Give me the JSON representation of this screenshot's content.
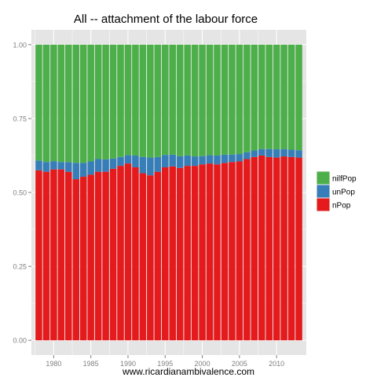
{
  "colors": {
    "panel_bg": "#e5e5e5",
    "grid": "#ffffff",
    "tick_text": "#7f7f7f",
    "nilfPop": "#4daf4a",
    "unPop": "#377eb8",
    "nPop": "#e41a1c"
  },
  "chart_data": {
    "type": "bar",
    "stacked": true,
    "title": "All -- attachment of the labour force",
    "xlabel": "www.ricardianambivalence.com",
    "ylabel": "",
    "x": [
      1978,
      1979,
      1980,
      1981,
      1982,
      1983,
      1984,
      1985,
      1986,
      1987,
      1988,
      1989,
      1990,
      1991,
      1992,
      1993,
      1994,
      1995,
      1996,
      1997,
      1998,
      1999,
      2000,
      2001,
      2002,
      2003,
      2004,
      2005,
      2006,
      2007,
      2008,
      2009,
      2010,
      2011,
      2012,
      2013
    ],
    "x_ticks": [
      1980,
      1985,
      1990,
      1995,
      2000,
      2005,
      2010
    ],
    "x_tick_labels": [
      "1980",
      "1985",
      "1990",
      "1995",
      "2000",
      "2005",
      "2010"
    ],
    "xlim": [
      1977,
      2014
    ],
    "y_ticks": [
      0,
      0.25,
      0.5,
      0.75,
      1
    ],
    "y_tick_labels": [
      "0.00",
      "0.25",
      "0.50",
      "0.75",
      "1.00"
    ],
    "ylim": [
      0,
      1
    ],
    "grid": true,
    "legend_position": "right",
    "series": [
      {
        "name": "nPop",
        "color": "#e41a1c",
        "values": [
          0.575,
          0.57,
          0.578,
          0.578,
          0.57,
          0.545,
          0.553,
          0.56,
          0.57,
          0.57,
          0.58,
          0.59,
          0.598,
          0.585,
          0.565,
          0.558,
          0.57,
          0.585,
          0.588,
          0.583,
          0.59,
          0.59,
          0.595,
          0.598,
          0.595,
          0.6,
          0.603,
          0.605,
          0.613,
          0.62,
          0.625,
          0.62,
          0.618,
          0.622,
          0.62,
          0.618
        ]
      },
      {
        "name": "unPop",
        "color": "#377eb8",
        "values": [
          0.033,
          0.033,
          0.028,
          0.025,
          0.033,
          0.055,
          0.047,
          0.045,
          0.043,
          0.042,
          0.035,
          0.03,
          0.028,
          0.04,
          0.055,
          0.06,
          0.05,
          0.042,
          0.04,
          0.04,
          0.035,
          0.032,
          0.028,
          0.028,
          0.03,
          0.028,
          0.025,
          0.025,
          0.023,
          0.022,
          0.022,
          0.027,
          0.028,
          0.025,
          0.025,
          0.025
        ]
      },
      {
        "name": "nilfPop",
        "color": "#4daf4a",
        "values": [
          0.392,
          0.397,
          0.394,
          0.397,
          0.397,
          0.4,
          0.4,
          0.395,
          0.387,
          0.388,
          0.385,
          0.38,
          0.374,
          0.375,
          0.38,
          0.382,
          0.38,
          0.373,
          0.372,
          0.377,
          0.375,
          0.378,
          0.377,
          0.374,
          0.375,
          0.372,
          0.372,
          0.37,
          0.364,
          0.358,
          0.353,
          0.353,
          0.354,
          0.353,
          0.355,
          0.357
        ]
      }
    ],
    "legend": [
      {
        "name": "nilfPop",
        "color": "#4daf4a"
      },
      {
        "name": "unPop",
        "color": "#377eb8"
      },
      {
        "name": "nPop",
        "color": "#e41a1c"
      }
    ]
  }
}
